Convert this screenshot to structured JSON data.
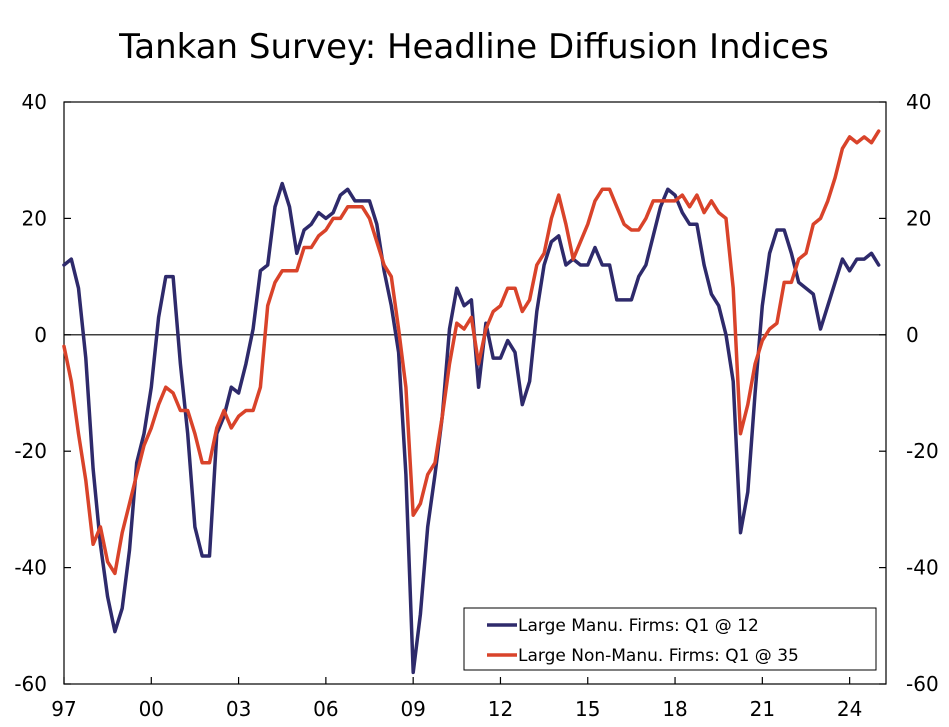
{
  "chart_data": {
    "type": "line",
    "title": "Tankan Survey: Headline Diffusion Indices",
    "xlabel": "",
    "ylabel": "",
    "xlim": [
      1997.0,
      2025.25
    ],
    "ylim": [
      -60,
      40
    ],
    "grid": false,
    "legend_position": "bottom-right",
    "x_tick_labels": [
      "97",
      "00",
      "03",
      "06",
      "09",
      "12",
      "15",
      "18",
      "21",
      "24"
    ],
    "y_tick_labels_left": [
      "40",
      "20",
      "0",
      "-20",
      "-40",
      "-60"
    ],
    "y_tick_labels_right": [
      "40",
      "20",
      "0",
      "-20",
      "-40",
      "-60"
    ],
    "colors": {
      "manufacturing": "#2e2a6b",
      "non_manufacturing": "#d9432a",
      "zero_line": "#000000"
    },
    "series": [
      {
        "name": "Large Manu. Firms: Q1 @ 12",
        "color": "#2e2a6b",
        "points": [
          [
            1997.0,
            12
          ],
          [
            1997.25,
            13
          ],
          [
            1997.5,
            8
          ],
          [
            1997.75,
            -4
          ],
          [
            1998.0,
            -23
          ],
          [
            1998.25,
            -36
          ],
          [
            1998.5,
            -45
          ],
          [
            1998.75,
            -51
          ],
          [
            1999.0,
            -47
          ],
          [
            1999.25,
            -37
          ],
          [
            1999.5,
            -22
          ],
          [
            1999.75,
            -17
          ],
          [
            2000.0,
            -9
          ],
          [
            2000.25,
            3
          ],
          [
            2000.5,
            10
          ],
          [
            2000.75,
            10
          ],
          [
            2001.0,
            -5
          ],
          [
            2001.25,
            -17
          ],
          [
            2001.5,
            -33
          ],
          [
            2001.75,
            -38
          ],
          [
            2002.0,
            -38
          ],
          [
            2002.25,
            -17
          ],
          [
            2002.5,
            -14
          ],
          [
            2002.75,
            -9
          ],
          [
            2003.0,
            -10
          ],
          [
            2003.25,
            -5
          ],
          [
            2003.5,
            1
          ],
          [
            2003.75,
            11
          ],
          [
            2004.0,
            12
          ],
          [
            2004.25,
            22
          ],
          [
            2004.5,
            26
          ],
          [
            2004.75,
            22
          ],
          [
            2005.0,
            14
          ],
          [
            2005.25,
            18
          ],
          [
            2005.5,
            19
          ],
          [
            2005.75,
            21
          ],
          [
            2006.0,
            20
          ],
          [
            2006.25,
            21
          ],
          [
            2006.5,
            24
          ],
          [
            2006.75,
            25
          ],
          [
            2007.0,
            23
          ],
          [
            2007.25,
            23
          ],
          [
            2007.5,
            23
          ],
          [
            2007.75,
            19
          ],
          [
            2008.0,
            11
          ],
          [
            2008.25,
            5
          ],
          [
            2008.5,
            -3
          ],
          [
            2008.75,
            -24
          ],
          [
            2009.0,
            -58
          ],
          [
            2009.25,
            -48
          ],
          [
            2009.5,
            -33
          ],
          [
            2009.75,
            -24
          ],
          [
            2010.0,
            -14
          ],
          [
            2010.25,
            1
          ],
          [
            2010.5,
            8
          ],
          [
            2010.75,
            5
          ],
          [
            2011.0,
            6
          ],
          [
            2011.25,
            -9
          ],
          [
            2011.5,
            2
          ],
          [
            2011.75,
            -4
          ],
          [
            2012.0,
            -4
          ],
          [
            2012.25,
            -1
          ],
          [
            2012.5,
            -3
          ],
          [
            2012.75,
            -12
          ],
          [
            2013.0,
            -8
          ],
          [
            2013.25,
            4
          ],
          [
            2013.5,
            12
          ],
          [
            2013.75,
            16
          ],
          [
            2014.0,
            17
          ],
          [
            2014.25,
            12
          ],
          [
            2014.5,
            13
          ],
          [
            2014.75,
            12
          ],
          [
            2015.0,
            12
          ],
          [
            2015.25,
            15
          ],
          [
            2015.5,
            12
          ],
          [
            2015.75,
            12
          ],
          [
            2016.0,
            6
          ],
          [
            2016.25,
            6
          ],
          [
            2016.5,
            6
          ],
          [
            2016.75,
            10
          ],
          [
            2017.0,
            12
          ],
          [
            2017.25,
            17
          ],
          [
            2017.5,
            22
          ],
          [
            2017.75,
            25
          ],
          [
            2018.0,
            24
          ],
          [
            2018.25,
            21
          ],
          [
            2018.5,
            19
          ],
          [
            2018.75,
            19
          ],
          [
            2019.0,
            12
          ],
          [
            2019.25,
            7
          ],
          [
            2019.5,
            5
          ],
          [
            2019.75,
            0
          ],
          [
            2020.0,
            -8
          ],
          [
            2020.25,
            -34
          ],
          [
            2020.5,
            -27
          ],
          [
            2020.75,
            -10
          ],
          [
            2021.0,
            5
          ],
          [
            2021.25,
            14
          ],
          [
            2021.5,
            18
          ],
          [
            2021.75,
            18
          ],
          [
            2022.0,
            14
          ],
          [
            2022.25,
            9
          ],
          [
            2022.5,
            8
          ],
          [
            2022.75,
            7
          ],
          [
            2023.0,
            1
          ],
          [
            2023.25,
            5
          ],
          [
            2023.5,
            9
          ],
          [
            2023.75,
            13
          ],
          [
            2024.0,
            11
          ],
          [
            2024.25,
            13
          ],
          [
            2024.5,
            13
          ],
          [
            2024.75,
            14
          ],
          [
            2025.0,
            12
          ]
        ]
      },
      {
        "name": "Large Non-Manu. Firms: Q1 @ 35",
        "color": "#d9432a",
        "points": [
          [
            1997.0,
            -2
          ],
          [
            1997.25,
            -8
          ],
          [
            1997.5,
            -17
          ],
          [
            1997.75,
            -25
          ],
          [
            1998.0,
            -36
          ],
          [
            1998.25,
            -33
          ],
          [
            1998.5,
            -39
          ],
          [
            1998.75,
            -41
          ],
          [
            1999.0,
            -34
          ],
          [
            1999.25,
            -29
          ],
          [
            1999.5,
            -24
          ],
          [
            1999.75,
            -19
          ],
          [
            2000.0,
            -16
          ],
          [
            2000.25,
            -12
          ],
          [
            2000.5,
            -9
          ],
          [
            2000.75,
            -10
          ],
          [
            2001.0,
            -13
          ],
          [
            2001.25,
            -13
          ],
          [
            2001.5,
            -17
          ],
          [
            2001.75,
            -22
          ],
          [
            2002.0,
            -22
          ],
          [
            2002.25,
            -16
          ],
          [
            2002.5,
            -13
          ],
          [
            2002.75,
            -16
          ],
          [
            2003.0,
            -14
          ],
          [
            2003.25,
            -13
          ],
          [
            2003.5,
            -13
          ],
          [
            2003.75,
            -9
          ],
          [
            2004.0,
            5
          ],
          [
            2004.25,
            9
          ],
          [
            2004.5,
            11
          ],
          [
            2004.75,
            11
          ],
          [
            2005.0,
            11
          ],
          [
            2005.25,
            15
          ],
          [
            2005.5,
            15
          ],
          [
            2005.75,
            17
          ],
          [
            2006.0,
            18
          ],
          [
            2006.25,
            20
          ],
          [
            2006.5,
            20
          ],
          [
            2006.75,
            22
          ],
          [
            2007.0,
            22
          ],
          [
            2007.25,
            22
          ],
          [
            2007.5,
            20
          ],
          [
            2007.75,
            16
          ],
          [
            2008.0,
            12
          ],
          [
            2008.25,
            10
          ],
          [
            2008.5,
            1
          ],
          [
            2008.75,
            -9
          ],
          [
            2009.0,
            -31
          ],
          [
            2009.25,
            -29
          ],
          [
            2009.5,
            -24
          ],
          [
            2009.75,
            -22
          ],
          [
            2010.0,
            -14
          ],
          [
            2010.25,
            -5
          ],
          [
            2010.5,
            2
          ],
          [
            2010.75,
            1
          ],
          [
            2011.0,
            3
          ],
          [
            2011.25,
            -5
          ],
          [
            2011.5,
            1
          ],
          [
            2011.75,
            4
          ],
          [
            2012.0,
            5
          ],
          [
            2012.25,
            8
          ],
          [
            2012.5,
            8
          ],
          [
            2012.75,
            4
          ],
          [
            2013.0,
            6
          ],
          [
            2013.25,
            12
          ],
          [
            2013.5,
            14
          ],
          [
            2013.75,
            20
          ],
          [
            2014.0,
            24
          ],
          [
            2014.25,
            19
          ],
          [
            2014.5,
            13
          ],
          [
            2014.75,
            16
          ],
          [
            2015.0,
            19
          ],
          [
            2015.25,
            23
          ],
          [
            2015.5,
            25
          ],
          [
            2015.75,
            25
          ],
          [
            2016.0,
            22
          ],
          [
            2016.25,
            19
          ],
          [
            2016.5,
            18
          ],
          [
            2016.75,
            18
          ],
          [
            2017.0,
            20
          ],
          [
            2017.25,
            23
          ],
          [
            2017.5,
            23
          ],
          [
            2017.75,
            23
          ],
          [
            2018.0,
            23
          ],
          [
            2018.25,
            24
          ],
          [
            2018.5,
            22
          ],
          [
            2018.75,
            24
          ],
          [
            2019.0,
            21
          ],
          [
            2019.25,
            23
          ],
          [
            2019.5,
            21
          ],
          [
            2019.75,
            20
          ],
          [
            2020.0,
            8
          ],
          [
            2020.25,
            -17
          ],
          [
            2020.5,
            -12
          ],
          [
            2020.75,
            -5
          ],
          [
            2021.0,
            -1
          ],
          [
            2021.25,
            1
          ],
          [
            2021.5,
            2
          ],
          [
            2021.75,
            9
          ],
          [
            2022.0,
            9
          ],
          [
            2022.25,
            13
          ],
          [
            2022.5,
            14
          ],
          [
            2022.75,
            19
          ],
          [
            2023.0,
            20
          ],
          [
            2023.25,
            23
          ],
          [
            2023.5,
            27
          ],
          [
            2023.75,
            32
          ],
          [
            2024.0,
            34
          ],
          [
            2024.25,
            33
          ],
          [
            2024.5,
            34
          ],
          [
            2024.75,
            33
          ],
          [
            2025.0,
            35
          ]
        ]
      }
    ]
  }
}
